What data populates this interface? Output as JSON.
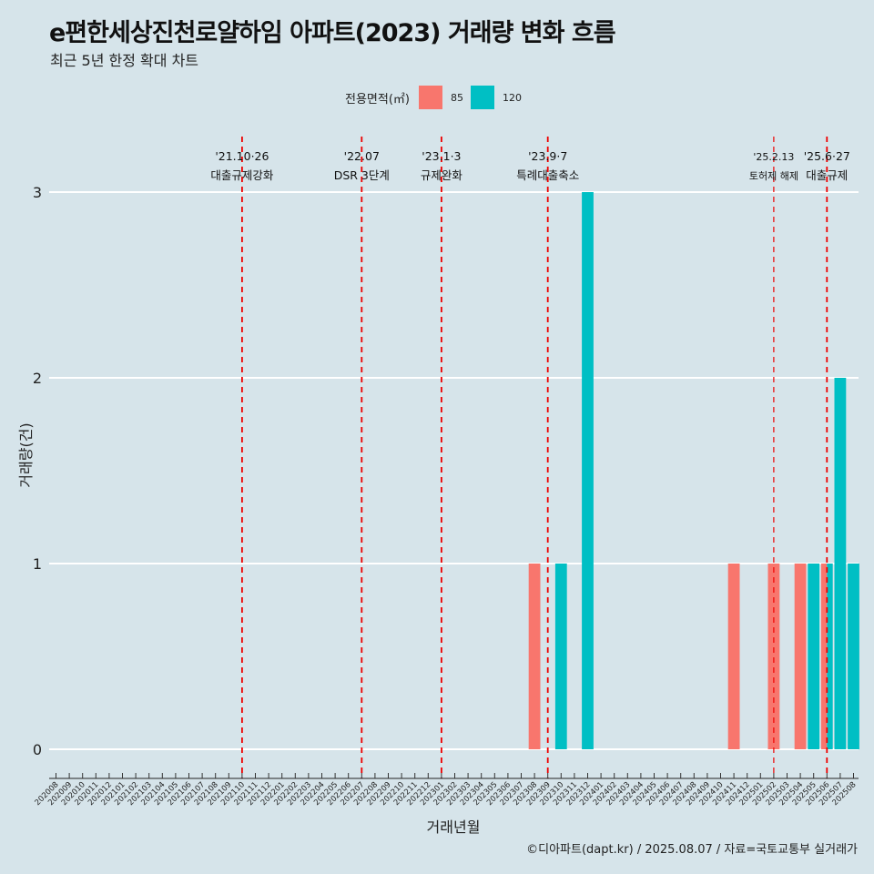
{
  "title": "e편한세상진천로얄하임 아파트(2023) 거래량 변화 흐름",
  "subtitle": "최근 5년 한정 확대 차트",
  "caption": "©디아파트(dapt.kr) / 2025.08.07 / 자료=국토교통부 실거래가",
  "legend": {
    "title": "전용면적(㎡)",
    "placement": "top",
    "items": [
      {
        "label": "85",
        "color": "#f8766d"
      },
      {
        "label": "120",
        "color": "#00bfc4"
      }
    ]
  },
  "chart_data": {
    "type": "bar",
    "xlabel": "거래년월",
    "ylabel": "거래량(건)",
    "ylim": [
      0,
      3
    ],
    "yticks": [
      0,
      1,
      2,
      3
    ],
    "grid": true,
    "categories": [
      "202008",
      "202009",
      "202010",
      "202011",
      "202012",
      "202101",
      "202102",
      "202103",
      "202104",
      "202105",
      "202106",
      "202107",
      "202108",
      "202109",
      "202110",
      "202111",
      "202112",
      "202201",
      "202202",
      "202203",
      "202204",
      "202205",
      "202206",
      "202207",
      "202208",
      "202209",
      "202210",
      "202211",
      "202212",
      "202301",
      "202302",
      "202303",
      "202304",
      "202305",
      "202306",
      "202307",
      "202308",
      "202309",
      "202310",
      "202311",
      "202312",
      "202401",
      "202402",
      "202403",
      "202404",
      "202405",
      "202406",
      "202407",
      "202408",
      "202409",
      "202410",
      "202411",
      "202412",
      "202501",
      "202502",
      "202503",
      "202504",
      "202505",
      "202506",
      "202507",
      "202508"
    ],
    "series": [
      {
        "name": "85",
        "color": "#f8766d",
        "points": [
          {
            "x": "202308",
            "y": 1
          },
          {
            "x": "202411",
            "y": 1
          },
          {
            "x": "202502",
            "y": 1
          },
          {
            "x": "202504",
            "y": 1
          },
          {
            "x": "202506",
            "y": 1
          }
        ]
      },
      {
        "name": "120",
        "color": "#00bfc4",
        "points": [
          {
            "x": "202310",
            "y": 1
          },
          {
            "x": "202312",
            "y": 3
          },
          {
            "x": "202505",
            "y": 1
          },
          {
            "x": "202506",
            "y": 1
          },
          {
            "x": "202507",
            "y": 2
          },
          {
            "x": "202508",
            "y": 1
          }
        ]
      }
    ],
    "annotations": [
      {
        "date": "'21.10·26",
        "label": "대출규제강화",
        "x": "202110"
      },
      {
        "date": "'22.07",
        "label": "DSR 3단계",
        "x": "202207"
      },
      {
        "date": "'23.1·3",
        "label": "규제완화",
        "x": "202301"
      },
      {
        "date": "'23.9·7",
        "label": "특례대출축소",
        "x": "202309"
      },
      {
        "date": "'25.2.13",
        "label": "토허제 해제",
        "x": "202502"
      },
      {
        "date": "'25.6·27",
        "label": "대출규제",
        "x": "202506"
      }
    ]
  }
}
